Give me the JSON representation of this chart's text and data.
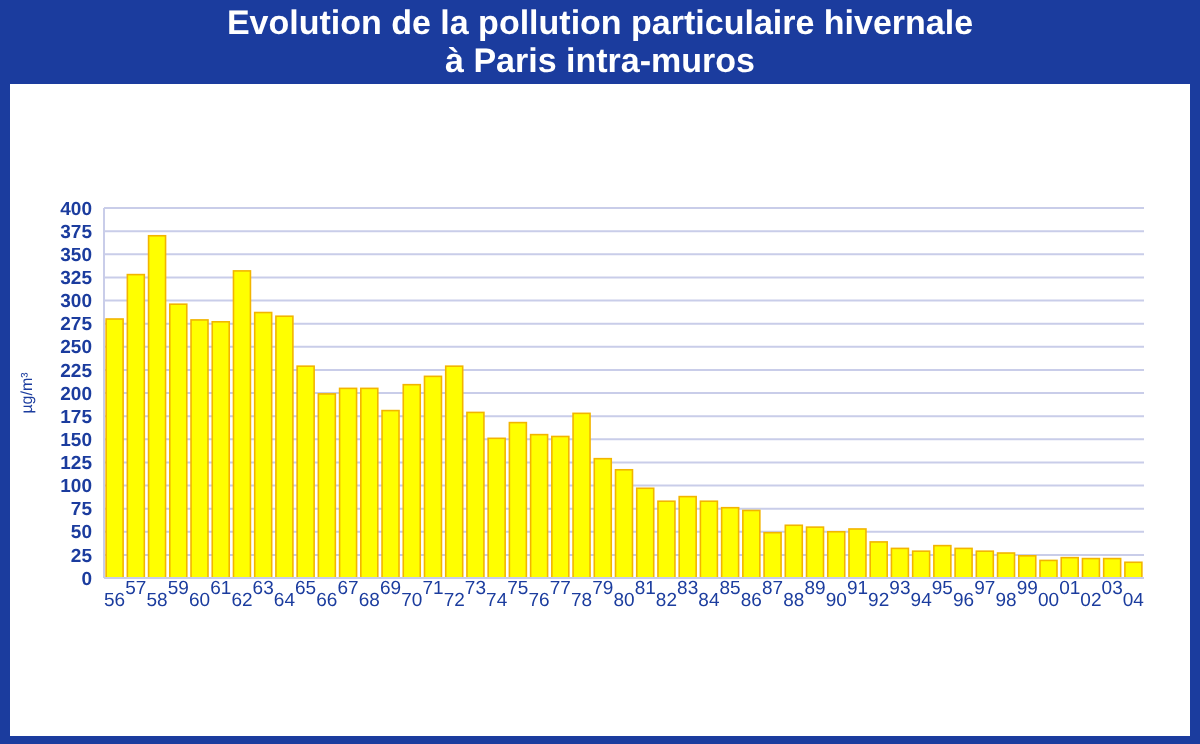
{
  "chart_data": {
    "type": "bar",
    "title": "Evolution de la pollution particulaire hivernale\nà Paris intra-muros",
    "ylabel": "µg/m³",
    "categories": [
      "56",
      "57",
      "58",
      "59",
      "60",
      "61",
      "62",
      "63",
      "64",
      "65",
      "66",
      "67",
      "68",
      "69",
      "70",
      "71",
      "72",
      "73",
      "74",
      "75",
      "76",
      "77",
      "78",
      "79",
      "80",
      "81",
      "82",
      "83",
      "84",
      "85",
      "86",
      "87",
      "88",
      "89",
      "90",
      "91",
      "92",
      "93",
      "94",
      "95",
      "96",
      "97",
      "98",
      "99",
      "00",
      "01",
      "02",
      "03",
      "04"
    ],
    "values": [
      280,
      328,
      370,
      296,
      279,
      277,
      332,
      287,
      283,
      229,
      199,
      205,
      205,
      181,
      209,
      218,
      229,
      179,
      151,
      168,
      155,
      153,
      178,
      129,
      117,
      97,
      83,
      88,
      83,
      76,
      73,
      49,
      57,
      55,
      50,
      53,
      39,
      32,
      29,
      35,
      32,
      29,
      27,
      24,
      19,
      22,
      21,
      21,
      17
    ],
    "color": "#ffff00",
    "ylim": [
      0,
      400
    ],
    "yticks": [
      0,
      25,
      50,
      75,
      100,
      125,
      150,
      175,
      200,
      225,
      250,
      275,
      300,
      325,
      350,
      375,
      400
    ],
    "grid": "y"
  }
}
